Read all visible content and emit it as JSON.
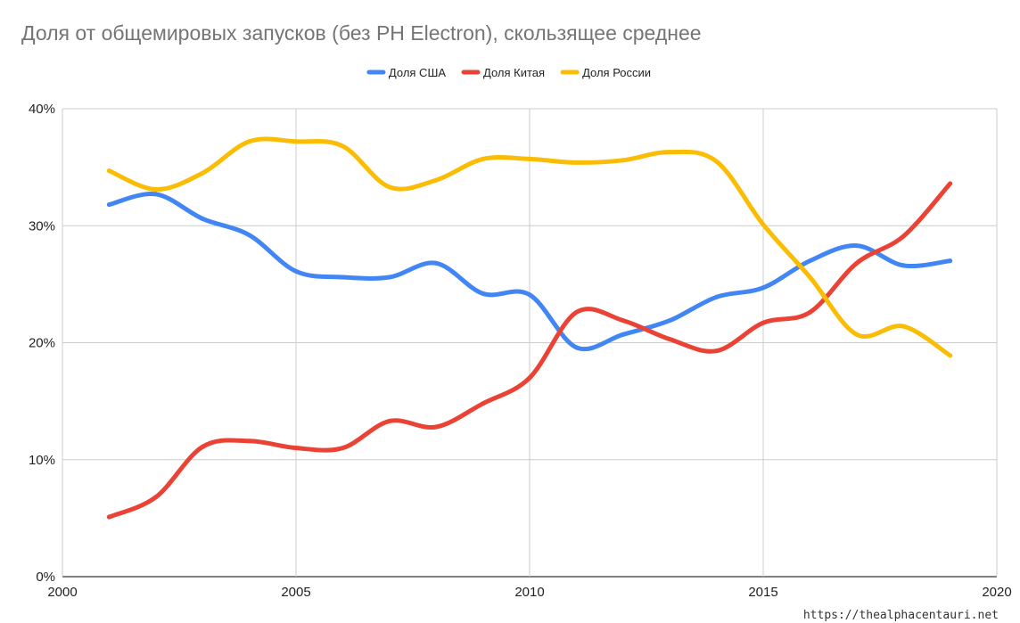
{
  "chart_data": {
    "type": "line",
    "title": "Доля от общемировых запусков (без РН Electron), скользящее среднее",
    "xlabel": "",
    "ylabel": "",
    "xlim": [
      2000,
      2020
    ],
    "ylim": [
      0,
      40
    ],
    "x_ticks": [
      "2000",
      "2005",
      "2010",
      "2015",
      "2020"
    ],
    "y_ticks": [
      "0%",
      "10%",
      "20%",
      "30%",
      "40%"
    ],
    "grid": true,
    "legend_position": "top",
    "x": [
      2001,
      2002,
      2003,
      2004,
      2005,
      2006,
      2007,
      2008,
      2009,
      2010,
      2011,
      2012,
      2013,
      2014,
      2015,
      2016,
      2017,
      2018,
      2019
    ],
    "series": [
      {
        "name": "Доля США",
        "color": "#4285f4",
        "values": [
          31.8,
          32.7,
          30.6,
          29.2,
          26.1,
          25.6,
          25.6,
          26.8,
          24.2,
          24.1,
          19.6,
          20.7,
          21.9,
          23.9,
          24.7,
          27.0,
          28.3,
          26.6,
          27.0
        ]
      },
      {
        "name": "Доля Китая",
        "color": "#ea4335",
        "values": [
          5.1,
          6.8,
          11.1,
          11.6,
          11.0,
          11.0,
          13.3,
          12.8,
          14.8,
          17.0,
          22.6,
          21.9,
          20.3,
          19.3,
          21.7,
          22.6,
          26.8,
          29.1,
          33.6
        ]
      },
      {
        "name": "Доля России",
        "color": "#fbbc04",
        "values": [
          34.7,
          33.1,
          34.5,
          37.2,
          37.2,
          36.8,
          33.3,
          33.9,
          35.7,
          35.7,
          35.4,
          35.6,
          36.3,
          35.5,
          30.1,
          25.6,
          20.7,
          21.4,
          18.9
        ]
      }
    ]
  },
  "footer": {
    "credit": "https://thealphacentauri.net"
  }
}
